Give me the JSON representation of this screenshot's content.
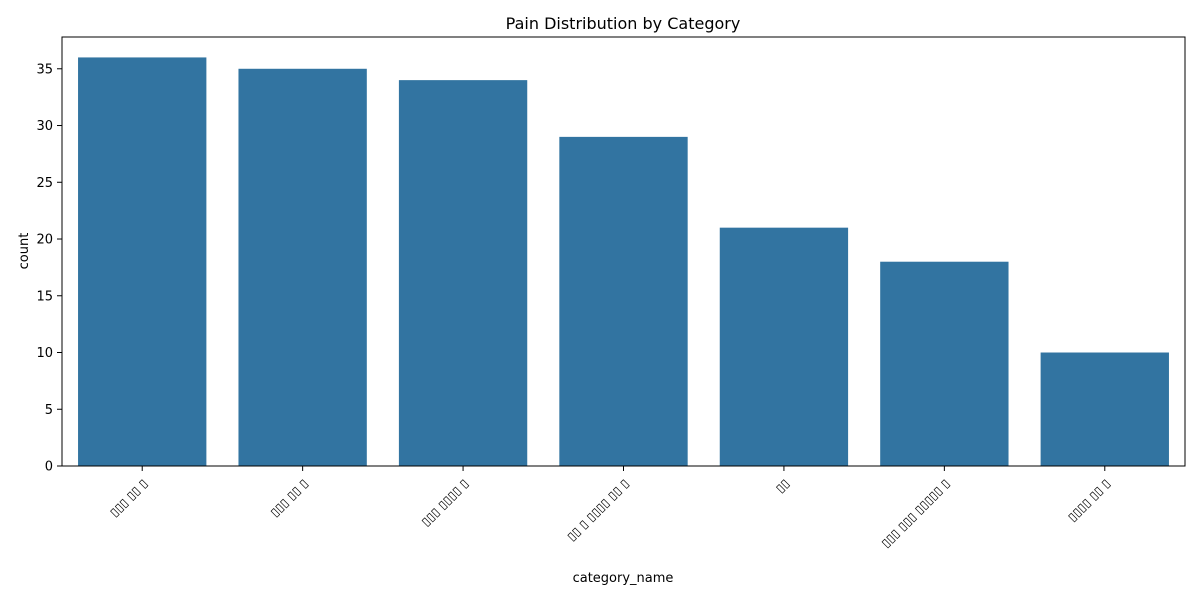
{
  "chart_data": {
    "type": "bar",
    "title": "Pain Distribution by Category",
    "xlabel": "category_name",
    "ylabel": "count",
    "categories": [
      "▯▯▯ ▯▯ ▯",
      "▯▯▯ ▯▯ ▯",
      "▯▯▯ ▯▯▯▯ ▯",
      "▯▯ ▯ ▯▯▯▯ ▯▯ ▯",
      "▯▯",
      "▯▯▯ ▯▯▯ ▯▯▯▯▯ ▯",
      "▯▯▯▯ ▯▯ ▯"
    ],
    "values": [
      36,
      35,
      34,
      29,
      21,
      18,
      10
    ],
    "ylim": [
      0,
      37.8
    ],
    "yticks": [
      0,
      5,
      10,
      15,
      20,
      25,
      30,
      35
    ],
    "bar_color": "#3274a1",
    "grid": false,
    "legend": "none"
  }
}
